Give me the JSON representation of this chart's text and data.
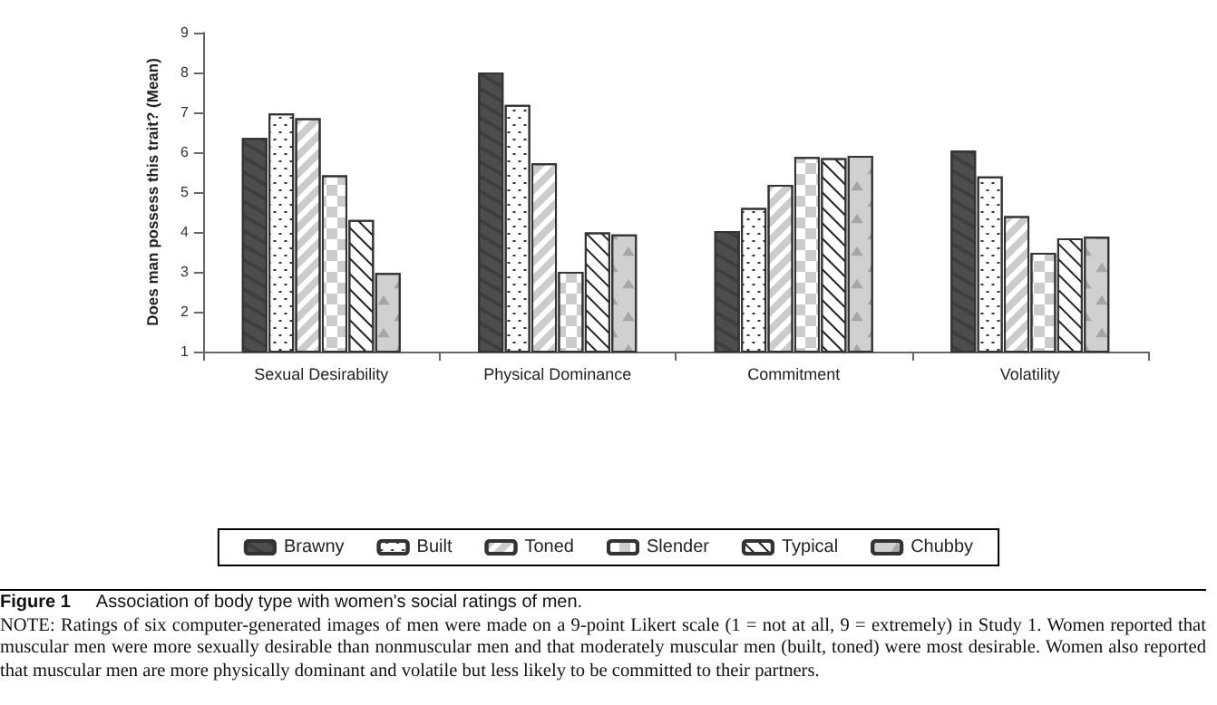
{
  "chart_data": {
    "type": "bar",
    "categories": [
      "Sexual Desirability",
      "Physical Dominance",
      "Commitment",
      "Volatility"
    ],
    "series": [
      {
        "name": "Brawny",
        "color": "#4d4d4d",
        "values": [
          6.36,
          8.0,
          4.02,
          6.04
        ]
      },
      {
        "name": "Built",
        "color": "#ffffff",
        "values": [
          6.97,
          7.19,
          4.6,
          5.39
        ]
      },
      {
        "name": "Toned",
        "color": "#ffffff",
        "values": [
          6.85,
          5.72,
          5.18,
          4.4
        ]
      },
      {
        "name": "Slender",
        "color": "#ffffff",
        "values": [
          5.42,
          3.0,
          5.88,
          3.48
        ]
      },
      {
        "name": "Typical",
        "color": "#ffffff",
        "values": [
          4.3,
          3.99,
          5.85,
          3.84
        ]
      },
      {
        "name": "Chubby",
        "color": "#d0d0d0",
        "values": [
          2.97,
          3.94,
          5.91,
          3.88
        ]
      }
    ],
    "ylabel": "Does man possess this trait? (Mean)",
    "ylim": [
      1,
      9
    ],
    "yticks": [
      1,
      2,
      3,
      4,
      5,
      6,
      7,
      8,
      9
    ],
    "grid": false,
    "legend": "bottom",
    "annotations": [
      "Figure 1",
      "Association of body type with women's social ratings of men.",
      "NOTE: Ratings of six computer-generated images of men were made on a 9-point Likert scale (1 = not at all, 9 = extremely) in Study 1. Women reported that muscular men were more sexually desirable than nonmuscular men and that moderately muscular men (built, toned) were most desirable. Women also reported that muscular men are more physically dominant and volatile but less likely to be committed to their partners."
    ]
  }
}
